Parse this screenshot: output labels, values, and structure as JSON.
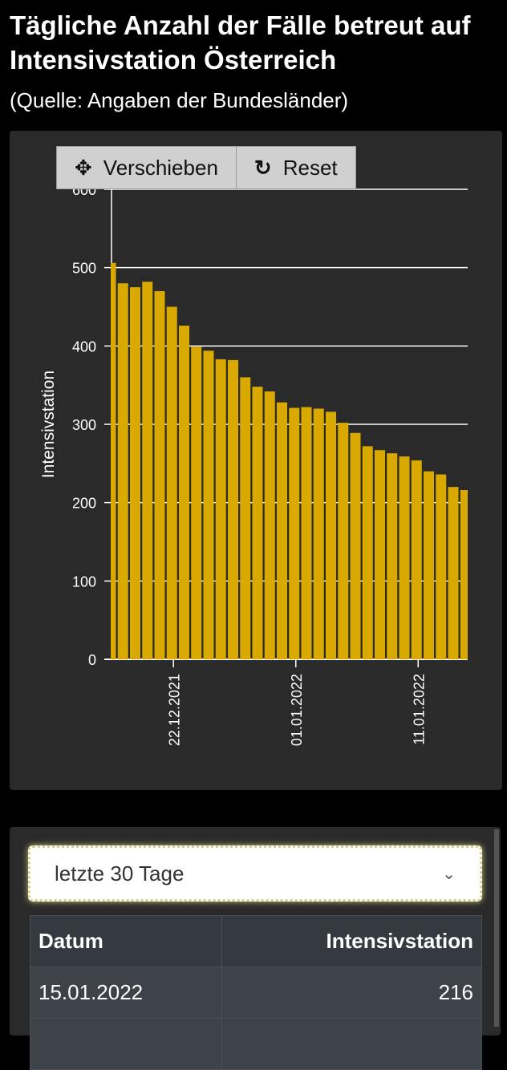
{
  "header": {
    "title": "Tägliche Anzahl der Fälle betreut auf Intensivstation Österreich",
    "subtitle": "(Quelle: Angaben der Bundesländer)"
  },
  "toolbar": {
    "pan_label": "Verschieben",
    "reset_label": "Reset"
  },
  "chart_data": {
    "type": "bar",
    "ylabel": "Intensivstation",
    "ylim": [
      0,
      600
    ],
    "yticks": [
      "0",
      "100",
      "200",
      "300",
      "400",
      "500",
      "600"
    ],
    "xticks": [
      {
        "label": "22.12.2021",
        "index": 5
      },
      {
        "label": "01.01.2022",
        "index": 15
      },
      {
        "label": "11.01.2022",
        "index": 25
      }
    ],
    "color": "#d9a900",
    "values": [
      506,
      480,
      475,
      482,
      470,
      450,
      426,
      399,
      394,
      383,
      382,
      360,
      348,
      342,
      328,
      321,
      322,
      320,
      316,
      302,
      289,
      272,
      267,
      263,
      259,
      254,
      240,
      236,
      220,
      216
    ]
  },
  "controls": {
    "range_select": "letzte 30 Tage"
  },
  "table": {
    "headers": [
      "Datum",
      "Intensivstation"
    ],
    "rows": [
      [
        "15.01.2022",
        "216"
      ]
    ]
  }
}
